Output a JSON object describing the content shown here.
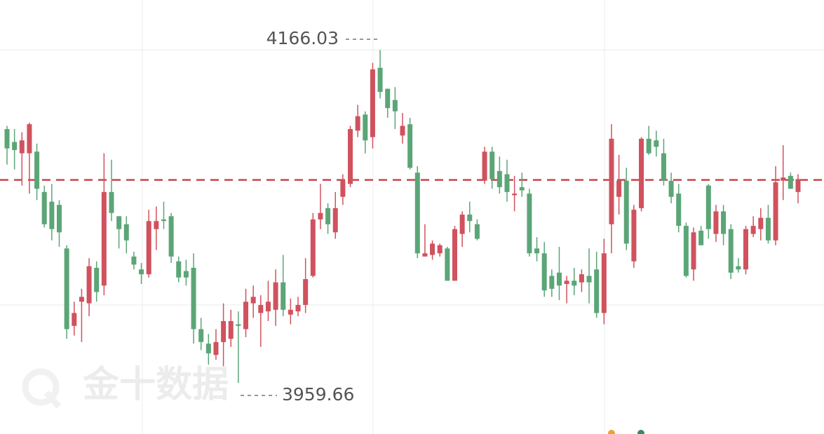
{
  "chart_data": {
    "type": "candlestick",
    "watermark": "金十数据",
    "up_color": "#d0525e",
    "down_color": "#5ba577",
    "ylim": [
      3928,
      4197
    ],
    "yticks": [
      4008,
      4166
    ],
    "grid": true,
    "reference_line": 4085.5,
    "high_label": 4166.03,
    "low_label": 3959.66,
    "open": [
      4117,
      4109,
      4102,
      4102,
      4103,
      4078,
      4072,
      4070,
      4043,
      3995,
      4010,
      4009,
      4031,
      4020,
      4078,
      4063,
      4058,
      4038,
      4030,
      4027,
      4055,
      4061,
      4063,
      4035,
      4029,
      4031,
      3993,
      3984,
      3977,
      3985,
      3987,
      3996,
      3993,
      4009,
      4003,
      4004,
      4005,
      4022,
      4002,
      4004,
      4008,
      4026,
      4061,
      4068,
      4053,
      4075,
      4083,
      4116,
      4126,
      4112,
      4155,
      4142,
      4135,
      4113,
      4120,
      4090,
      4038,
      4039,
      4040,
      4043,
      4023,
      4052,
      4064,
      4058,
      4085,
      4103,
      4091,
      4089,
      4076,
      4081,
      4077,
      4043,
      4040,
      4026,
      4028,
      4021,
      4023,
      4022,
      4026,
      4030,
      4003,
      4058,
      4075,
      4085,
      4035,
      4068,
      4111,
      4110,
      4102,
      4085,
      4077,
      4057,
      4030,
      4054,
      4082,
      4052,
      4066,
      4055,
      4032,
      4030,
      4052,
      4055,
      4062,
      4048,
      4085,
      4088,
      4078
    ],
    "high": [
      4119,
      4117,
      4115,
      4121,
      4108,
      4082,
      4083,
      4073,
      4045,
      4010,
      4018,
      4037,
      4035,
      4102,
      4098,
      4063,
      4063,
      4041,
      4034,
      4067,
      4069,
      4072,
      4065,
      4038,
      4036,
      4040,
      4000,
      3990,
      3993,
      4009,
      4005,
      4004,
      4018,
      4020,
      4014,
      4023,
      4030,
      4039,
      4012,
      4013,
      4037,
      4065,
      4083,
      4071,
      4078,
      4089,
      4119,
      4132,
      4128,
      4158,
      4166.03,
      4142,
      4143,
      4127,
      4124,
      4094,
      4058,
      4048,
      4046,
      4044,
      4057,
      4066,
      4072,
      4061,
      4106,
      4106,
      4100,
      4098,
      4088,
      4090,
      4080,
      4050,
      4047,
      4030,
      4044,
      4026,
      4031,
      4030,
      4043,
      4041,
      4049,
      4120,
      4101,
      4093,
      4070,
      4112,
      4119,
      4116,
      4111,
      4090,
      4083,
      4059,
      4056,
      4057,
      4083,
      4070,
      4070,
      4058,
      4037,
      4057,
      4063,
      4068,
      4070,
      4094,
      4107,
      4090,
      4089
    ],
    "low": [
      4095,
      4092,
      4082,
      4077,
      4073,
      4056,
      4048,
      4044,
      3987,
      3989,
      3985,
      4001,
      4010,
      4014,
      4060,
      4043,
      4040,
      4030,
      4021,
      4025,
      4042,
      4055,
      4034,
      4022,
      4020,
      3984,
      3980,
      3971,
      3974,
      3970,
      3982,
      3959.66,
      3988,
      4000,
      3982,
      3998,
      3995,
      4001,
      3996,
      4001,
      4003,
      4025,
      4055,
      4052,
      4049,
      4070,
      4081,
      4112,
      4102,
      4105,
      4136,
      4124,
      4117,
      4108,
      4092,
      4037,
      4038,
      4036,
      4038,
      4023,
      4023,
      4044,
      4053,
      4048,
      4083,
      4080,
      4077,
      4072,
      4066,
      4075,
      4038,
      4035,
      4013,
      4013,
      4011,
      4009,
      4014,
      4016,
      4009,
      4000,
      3996,
      4040,
      4064,
      4042,
      4031,
      4066,
      4101,
      4100,
      4082,
      4071,
      4053,
      4025,
      4023,
      4045,
      4049,
      4047,
      4045,
      4024,
      4028,
      4027,
      4050,
      4048,
      4046,
      4045,
      4073,
      4080,
      4071
    ],
    "close": [
      4105,
      4104,
      4110,
      4120,
      4080,
      4058,
      4055,
      4053,
      3993,
      4003,
      4013,
      4032,
      4016,
      4078,
      4065,
      4055,
      4048,
      4033,
      4027,
      4060,
      4060,
      4060,
      4038,
      4025,
      4025,
      3993,
      3985,
      3978,
      3985,
      3998,
      3998,
      3995,
      4010,
      4013,
      4008,
      4010,
      4022,
      4005,
      4005,
      4008,
      4024,
      4061,
      4065,
      4058,
      4068,
      4085,
      4117,
      4125,
      4110,
      4154,
      4140,
      4130,
      4128,
      4119,
      4093,
      4040,
      4040,
      4046,
      4045,
      4023,
      4055,
      4064,
      4060,
      4049,
      4103,
      4086,
      4081,
      4078,
      4077,
      4079,
      4040,
      4040,
      4017,
      4018,
      4020,
      4023,
      4020,
      4027,
      4022,
      4003,
      4040,
      4111,
      4085,
      4046,
      4067,
      4111,
      4102,
      4106,
      4085,
      4075,
      4057,
      4026,
      4053,
      4045,
      4055,
      4066,
      4052,
      4028,
      4030,
      4055,
      4057,
      4062,
      4048,
      4084,
      4087,
      4080,
      4086
    ]
  }
}
